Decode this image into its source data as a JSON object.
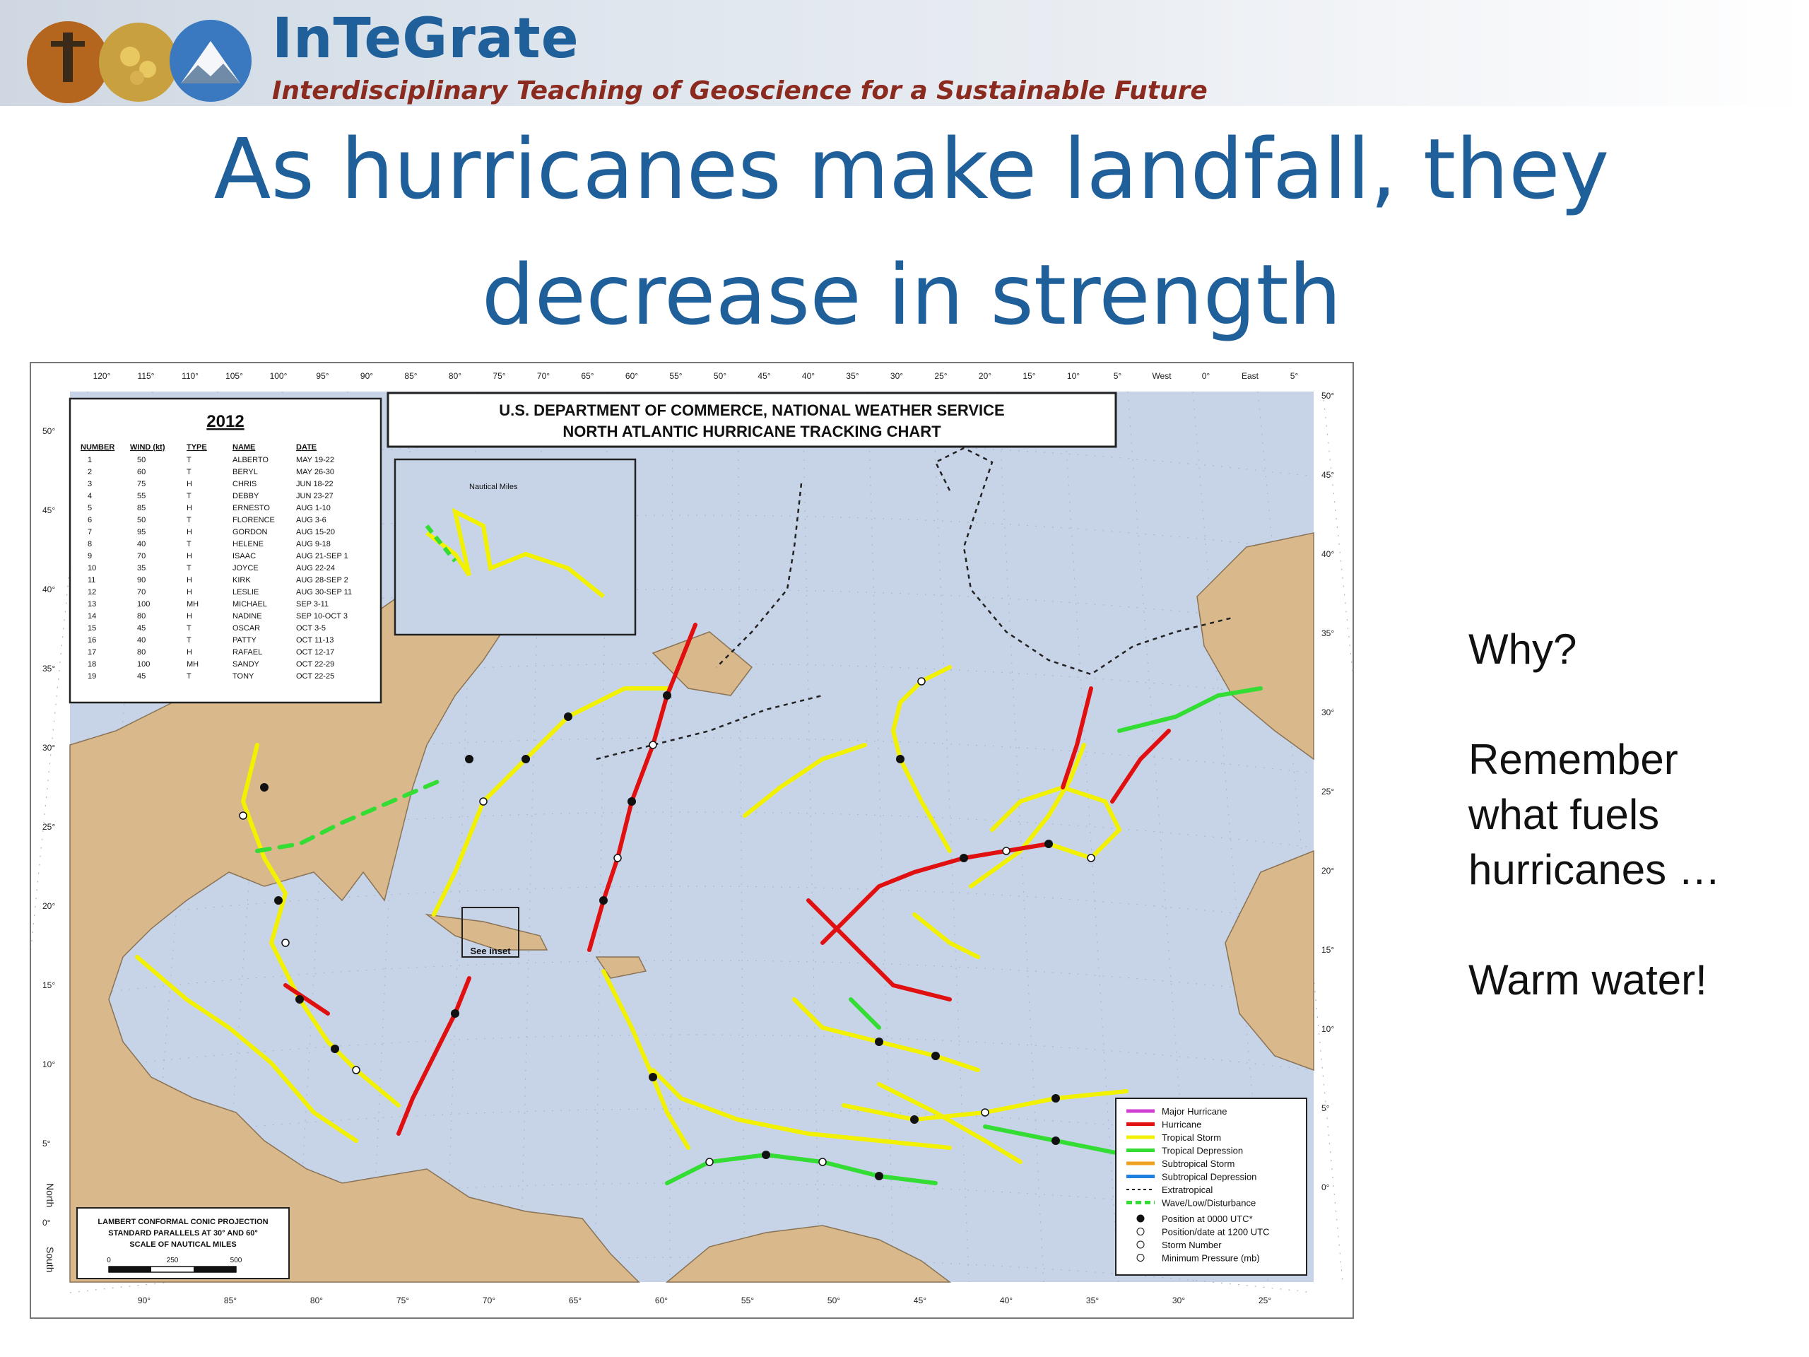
{
  "banner": {
    "brand": "InTeGrate",
    "tagline": "Interdisciplinary Teaching of Geoscience for a Sustainable Future"
  },
  "slide": {
    "title_line1": "As hurricanes make landfall, they",
    "title_line2": "decrease in strength",
    "side_why": "Why?",
    "side_remember": "Remember what fuels hurricanes …",
    "side_answer": "Warm water!"
  },
  "chart": {
    "header_line1": "U.S. DEPARTMENT OF COMMERCE, NATIONAL WEATHER SERVICE",
    "header_line2": "NORTH ATLANTIC HURRICANE TRACKING CHART",
    "year": "2012",
    "table_headers": [
      "NUMBER",
      "WIND (kt)",
      "TYPE",
      "NAME",
      "DATE"
    ],
    "storms": [
      [
        "1",
        "50",
        "T",
        "ALBERTO",
        "MAY 19-22"
      ],
      [
        "2",
        "60",
        "T",
        "BERYL",
        "MAY 26-30"
      ],
      [
        "3",
        "75",
        "H",
        "CHRIS",
        "JUN 18-22"
      ],
      [
        "4",
        "55",
        "T",
        "DEBBY",
        "JUN 23-27"
      ],
      [
        "5",
        "85",
        "H",
        "ERNESTO",
        "AUG 1-10"
      ],
      [
        "6",
        "50",
        "T",
        "FLORENCE",
        "AUG 3-6"
      ],
      [
        "7",
        "95",
        "H",
        "GORDON",
        "AUG 15-20"
      ],
      [
        "8",
        "40",
        "T",
        "HELENE",
        "AUG 9-18"
      ],
      [
        "9",
        "70",
        "H",
        "ISAAC",
        "AUG 21-SEP 1"
      ],
      [
        "10",
        "35",
        "T",
        "JOYCE",
        "AUG 22-24"
      ],
      [
        "11",
        "90",
        "H",
        "KIRK",
        "AUG 28-SEP 2"
      ],
      [
        "12",
        "70",
        "H",
        "LESLIE",
        "AUG 30-SEP 11"
      ],
      [
        "13",
        "100",
        "MH",
        "MICHAEL",
        "SEP 3-11"
      ],
      [
        "14",
        "80",
        "H",
        "NADINE",
        "SEP 10-OCT 3"
      ],
      [
        "15",
        "45",
        "T",
        "OSCAR",
        "OCT 3-5"
      ],
      [
        "16",
        "40",
        "T",
        "PATTY",
        "OCT 11-13"
      ],
      [
        "17",
        "80",
        "H",
        "RAFAEL",
        "OCT 12-17"
      ],
      [
        "18",
        "100",
        "MH",
        "SANDY",
        "OCT 22-29"
      ],
      [
        "19",
        "45",
        "T",
        "TONY",
        "OCT 22-25"
      ]
    ],
    "legend": [
      {
        "label": "Major Hurricane",
        "color": "#d040d0",
        "style": "solid"
      },
      {
        "label": "Hurricane",
        "color": "#e01010",
        "style": "solid"
      },
      {
        "label": "Tropical Storm",
        "color": "#f2f200",
        "style": "solid"
      },
      {
        "label": "Tropical Depression",
        "color": "#33dd33",
        "style": "solid"
      },
      {
        "label": "Subtropical Storm",
        "color": "#f0a020",
        "style": "solid"
      },
      {
        "label": "Subtropical Depression",
        "color": "#2080e0",
        "style": "solid"
      },
      {
        "label": "Extratropical",
        "color": "#222222",
        "style": "cross"
      },
      {
        "label": "Wave/Low/Disturbance",
        "color": "#33dd33",
        "style": "dash"
      }
    ],
    "legend_notes": [
      "Position at 0000 UTC*",
      "Position/date at 1200 UTC",
      "Storm Number",
      "Minimum Pressure (mb)"
    ],
    "projection": [
      "LAMBERT CONFORMAL CONIC PROJECTION",
      "STANDARD PARALLELS AT 30° AND 60°",
      "SCALE OF NAUTICAL MILES"
    ],
    "scale_ticks": [
      "0",
      "250",
      "500"
    ],
    "inset_label": "See inset",
    "inset_scale": "Nautical Miles",
    "top_lon_labels": [
      "120°",
      "115°",
      "110°",
      "105°",
      "100°",
      "95°",
      "90°",
      "85°",
      "80°",
      "75°",
      "70°",
      "65°",
      "60°",
      "55°",
      "50°",
      "45°",
      "40°",
      "35°",
      "30°",
      "25°",
      "20°",
      "15°",
      "10°",
      "5°",
      "West",
      "0°",
      "East",
      "5°"
    ],
    "bottom_lon_labels": [
      "90°",
      "85°",
      "80°",
      "75°",
      "70°",
      "65°",
      "60°",
      "55°",
      "50°",
      "45°",
      "40°",
      "35°",
      "30°",
      "25°"
    ],
    "left_lat_labels": [
      "50°",
      "45°",
      "40°",
      "35°",
      "30°",
      "25°",
      "20°",
      "15°",
      "10°",
      "5°",
      "0°"
    ],
    "right_lat_labels": [
      "50°",
      "45°",
      "40°",
      "35°",
      "30°",
      "25°",
      "20°",
      "15°",
      "10°",
      "5°",
      "0°"
    ],
    "axis_north": "North",
    "axis_south": "South"
  }
}
